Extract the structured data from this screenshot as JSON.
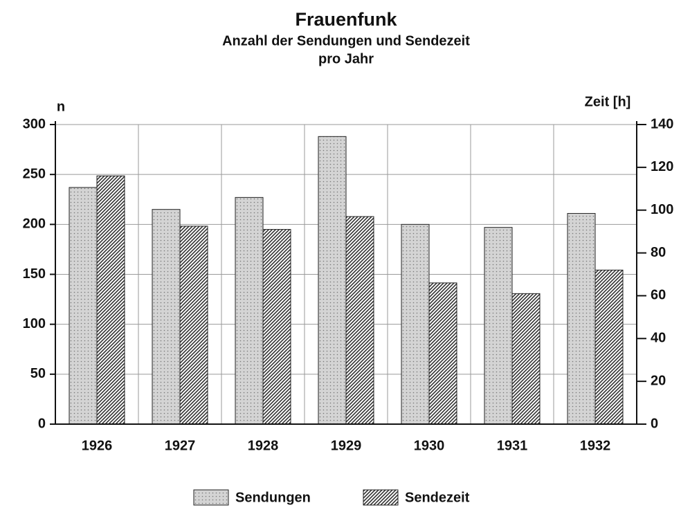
{
  "chart_data": {
    "type": "bar",
    "title": "Frauenfunk",
    "subtitle": [
      "Anzahl der Sendungen und Sendezeit",
      "pro Jahr"
    ],
    "ylabel": "n",
    "y2label": "Zeit [h]",
    "categories": [
      "1926",
      "1927",
      "1928",
      "1929",
      "1930",
      "1931",
      "1932"
    ],
    "series": [
      {
        "name": "Sendungen",
        "color": "#d4d4d4",
        "values": [
          237,
          215,
          227,
          288,
          200,
          197,
          211
        ]
      },
      {
        "name": "Sendezeit",
        "color": "#333333",
        "axis": "y2",
        "values": [
          116,
          92.5,
          91,
          97,
          66,
          61,
          72
        ]
      }
    ],
    "ylim": [
      0,
      300
    ],
    "yticks": [
      0,
      50,
      100,
      150,
      200,
      250,
      300
    ],
    "y2lim": [
      0,
      140
    ],
    "y2ticks": [
      0,
      20,
      40,
      60,
      80,
      100,
      120,
      140
    ],
    "grid": true,
    "legend": "bottom"
  }
}
